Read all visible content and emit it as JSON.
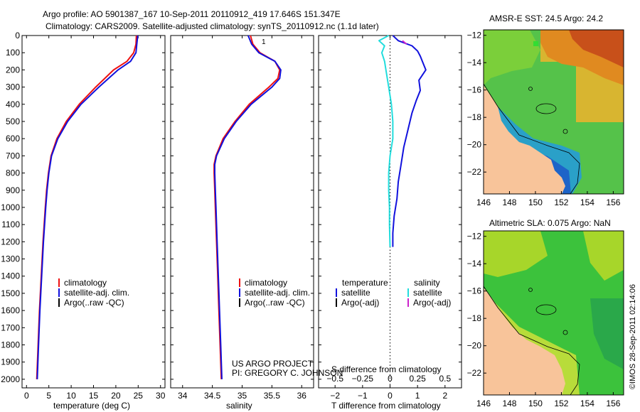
{
  "title": {
    "line1": "Argo profile: AO 5901387_167 10-Sep-2011 20110912_419 17.646S 151.347E",
    "line2": "Climatology: CARS2009. Satellite-adjusted climatology: synTS_20110912.nc (1.1d later)"
  },
  "credit": {
    "line1": "US ARGO PROJECT",
    "line2": "PI: GREGORY C. JOHNSON"
  },
  "timestamp": "©IMOS 28-Sep-2011 02:14:06",
  "colors": {
    "climatology": "#ee1111",
    "satellite": "#1111dd",
    "argo": "#000000",
    "salinity_satellite": "#22dddd",
    "salinity_argo": "#cc22cc",
    "land": "#f8c49a"
  },
  "chart_data": [
    {
      "type": "line",
      "id": "temperature",
      "xlabel": "temperature (deg C)",
      "ylabel": "",
      "xlim": [
        -1,
        31
      ],
      "ylim": [
        2050,
        0
      ],
      "xticks": [
        0,
        5,
        10,
        15,
        20,
        25,
        30
      ],
      "xticklabels": [
        "0",
        "5",
        "10",
        "15",
        "20",
        "25",
        "30"
      ],
      "yticks": [
        0,
        100,
        200,
        300,
        400,
        500,
        600,
        700,
        800,
        900,
        1000,
        1100,
        1200,
        1300,
        1400,
        1500,
        1600,
        1700,
        1800,
        1900,
        2000
      ],
      "yticklabels": [
        "0",
        "100",
        "200",
        "300",
        "400",
        "500",
        "600",
        "700",
        "800",
        "900",
        "1000",
        "1100",
        "1200",
        "1300",
        "1400",
        "1500",
        "1600",
        "1700",
        "1800",
        "1900",
        "2000"
      ],
      "series": [
        {
          "name": "climatology",
          "color": "#ee1111",
          "depth": [
            0,
            50,
            100,
            150,
            200,
            300,
            400,
            500,
            600,
            700,
            800,
            900,
            1000,
            1200,
            1400,
            1600,
            1800,
            2000
          ],
          "values": [
            24.6,
            24.5,
            24.0,
            22.5,
            19.5,
            15.5,
            11.8,
            8.9,
            6.8,
            5.5,
            4.9,
            4.5,
            4.2,
            3.7,
            3.3,
            2.9,
            2.6,
            2.3
          ]
        },
        {
          "name": "satellite-adj. clim.",
          "color": "#1111dd",
          "depth": [
            0,
            50,
            100,
            150,
            200,
            300,
            400,
            500,
            600,
            700,
            800,
            900,
            1000,
            1200,
            1400,
            1600,
            1800,
            2000
          ],
          "values": [
            24.9,
            24.7,
            24.5,
            23.3,
            20.5,
            16.2,
            12.2,
            9.2,
            7.0,
            5.6,
            5.0,
            4.6,
            4.3,
            3.8,
            3.4,
            3.0,
            2.7,
            2.4
          ]
        }
      ],
      "legend": {
        "position": "lower-middle",
        "entries": [
          "climatology",
          "satellite-adj. clim.",
          "Argo(..raw -QC)"
        ]
      }
    },
    {
      "type": "line",
      "id": "salinity",
      "xlabel": "salinity",
      "xlim": [
        33.8,
        36.2
      ],
      "ylim": [
        2050,
        0
      ],
      "xticks": [
        34,
        34.5,
        35,
        35.5,
        36
      ],
      "xticklabels": [
        "34",
        "34.5",
        "35",
        "35.5",
        "36"
      ],
      "series": [
        {
          "name": "climatology",
          "color": "#ee1111",
          "depth": [
            0,
            50,
            100,
            150,
            200,
            250,
            300,
            400,
            500,
            600,
            700,
            750,
            800,
            900,
            1000,
            1200,
            1400,
            1600,
            1800,
            2000
          ],
          "values": [
            35.14,
            35.18,
            35.3,
            35.55,
            35.63,
            35.6,
            35.45,
            35.12,
            34.88,
            34.68,
            34.56,
            34.53,
            34.53,
            34.54,
            34.55,
            34.57,
            34.59,
            34.61,
            34.63,
            34.65
          ]
        },
        {
          "name": "satellite-adj. clim.",
          "color": "#1111dd",
          "depth": [
            0,
            50,
            100,
            150,
            200,
            250,
            300,
            400,
            500,
            600,
            700,
            750,
            800,
            900,
            1000,
            1200,
            1400,
            1600,
            1800,
            2000
          ],
          "values": [
            35.1,
            35.16,
            35.28,
            35.55,
            35.65,
            35.63,
            35.5,
            35.15,
            34.9,
            34.7,
            34.57,
            34.54,
            34.54,
            34.55,
            34.56,
            34.58,
            34.6,
            34.62,
            34.64,
            34.66
          ]
        }
      ],
      "annotation": "1",
      "legend": {
        "position": "lower-middle",
        "entries": [
          "climatology",
          "satellite-adj. clim.",
          "Argo(..raw -QC)"
        ]
      }
    },
    {
      "type": "line",
      "id": "difference",
      "xlabel": "T difference from climatology",
      "xlabel_top": "S difference from climatology",
      "xlim": [
        -2.6,
        2.6
      ],
      "ylim": [
        2050,
        0
      ],
      "xticks": [
        -2,
        -1,
        0,
        1,
        2
      ],
      "xticklabels": [
        "−2",
        "−1",
        "0",
        "1",
        "2"
      ],
      "sticks": [
        -2,
        -1,
        0,
        1,
        2
      ],
      "sticklabels": [
        "−0.5",
        "−0.25",
        "0",
        "0.25",
        "0.5"
      ],
      "series": [
        {
          "name": "temperature satellite",
          "color": "#1111dd",
          "depth": [
            0,
            30,
            60,
            90,
            120,
            160,
            200,
            260,
            320,
            380,
            450,
            550,
            650,
            750,
            850,
            950,
            1050,
            1150,
            1230
          ],
          "values": [
            0.1,
            0.3,
            0.8,
            1.0,
            1.1,
            1.2,
            1.3,
            1.05,
            1.1,
            0.95,
            0.8,
            0.65,
            0.5,
            0.4,
            0.3,
            0.25,
            0.15,
            0.1,
            0.1
          ]
        },
        {
          "name": "salinity satellite",
          "color": "#22dddd",
          "depth": [
            0,
            30,
            60,
            100,
            150,
            200,
            300,
            400,
            500,
            600,
            700,
            800,
            900,
            1000,
            1100,
            1230
          ],
          "values": [
            -0.05,
            -0.4,
            -0.2,
            -0.3,
            -0.2,
            -0.15,
            -0.05,
            0.05,
            0.1,
            0.1,
            0.0,
            -0.05,
            -0.05,
            -0.02,
            -0.02,
            0.0
          ]
        },
        {
          "name": "salinity Argo(-adj)",
          "color": "#cc22cc",
          "depth": [
            30,
            50
          ],
          "values": [
            0.45,
            0.6
          ]
        }
      ],
      "legend": {
        "position": "lower-middle",
        "temperature_header": "temperature",
        "salinity_header": "salinity",
        "entries": [
          "satellite",
          "Argo(-adj)",
          "satellite",
          "Argo(-adj)"
        ]
      }
    },
    {
      "type": "heatmap",
      "id": "sst_map",
      "title": "AMSR-E SST: 24.5 Argo: 24.2",
      "xticks": [
        146,
        148,
        150,
        152,
        154,
        156
      ],
      "xticklabels": [
        "146",
        "148",
        "150",
        "152",
        "154",
        "156"
      ],
      "yticks": [
        -12,
        -14,
        -16,
        -18,
        -20,
        -22
      ],
      "yticklabels": [
        "−12",
        "−14",
        "−16",
        "−18",
        "−20",
        "−22"
      ],
      "xlim": [
        146,
        156.8
      ],
      "ylim": [
        -23.6,
        -11.6
      ]
    },
    {
      "type": "heatmap",
      "id": "sla_map",
      "title": "Altimetric SLA: 0.075 Argo: NaN",
      "xticks": [
        146,
        148,
        150,
        152,
        154,
        156
      ],
      "xticklabels": [
        "146",
        "148",
        "150",
        "152",
        "154",
        "156"
      ],
      "yticks": [
        -12,
        -14,
        -16,
        -18,
        -20,
        -22
      ],
      "yticklabels": [
        "−12",
        "−14",
        "−16",
        "−18",
        "−20",
        "−22"
      ],
      "xlim": [
        146,
        156.8
      ],
      "ylim": [
        -23.6,
        -11.6
      ]
    }
  ]
}
